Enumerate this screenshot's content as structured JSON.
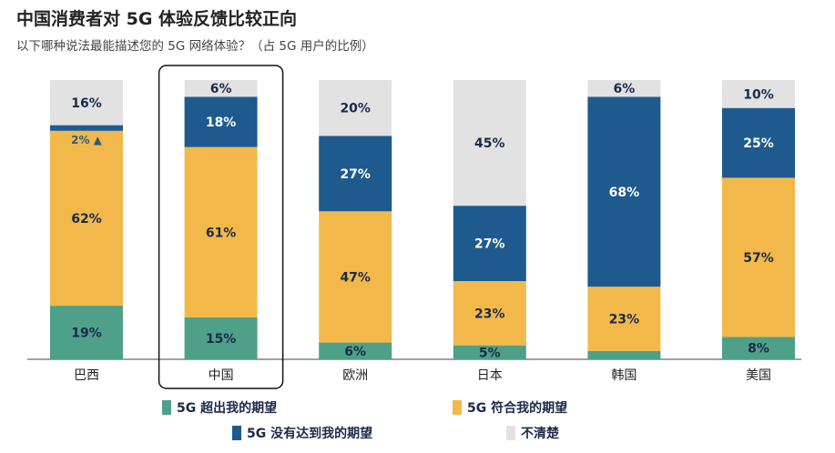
{
  "title": "中国消费者对 5G 体验反馈比较正向",
  "subtitle": "以下哪种说法最能描述您的 5G 网络体验？（占 5G 用户的比例）",
  "chart_data": {
    "type": "bar",
    "stacked": true,
    "categories": [
      "巴西",
      "中国",
      "欧洲",
      "日本",
      "韩国",
      "美国"
    ],
    "highlight": "中国",
    "ylim": [
      0,
      100
    ],
    "grid": false,
    "legend_placement": "bottom",
    "series": [
      {
        "name": "5G 超出我的期望",
        "color": "#4fa088",
        "values": [
          19,
          15,
          6,
          5,
          3,
          8
        ]
      },
      {
        "name": "5G 符合我的期望",
        "color": "#f2b94a",
        "values": [
          62,
          61,
          47,
          23,
          23,
          57
        ]
      },
      {
        "name": "5G 没有达到我的期望",
        "color": "#1f5a8e",
        "values": [
          2,
          18,
          27,
          27,
          68,
          25
        ]
      },
      {
        "name": "不清楚",
        "color": "#e2e2e2",
        "values": [
          16,
          6,
          20,
          45,
          6,
          10
        ]
      }
    ]
  }
}
